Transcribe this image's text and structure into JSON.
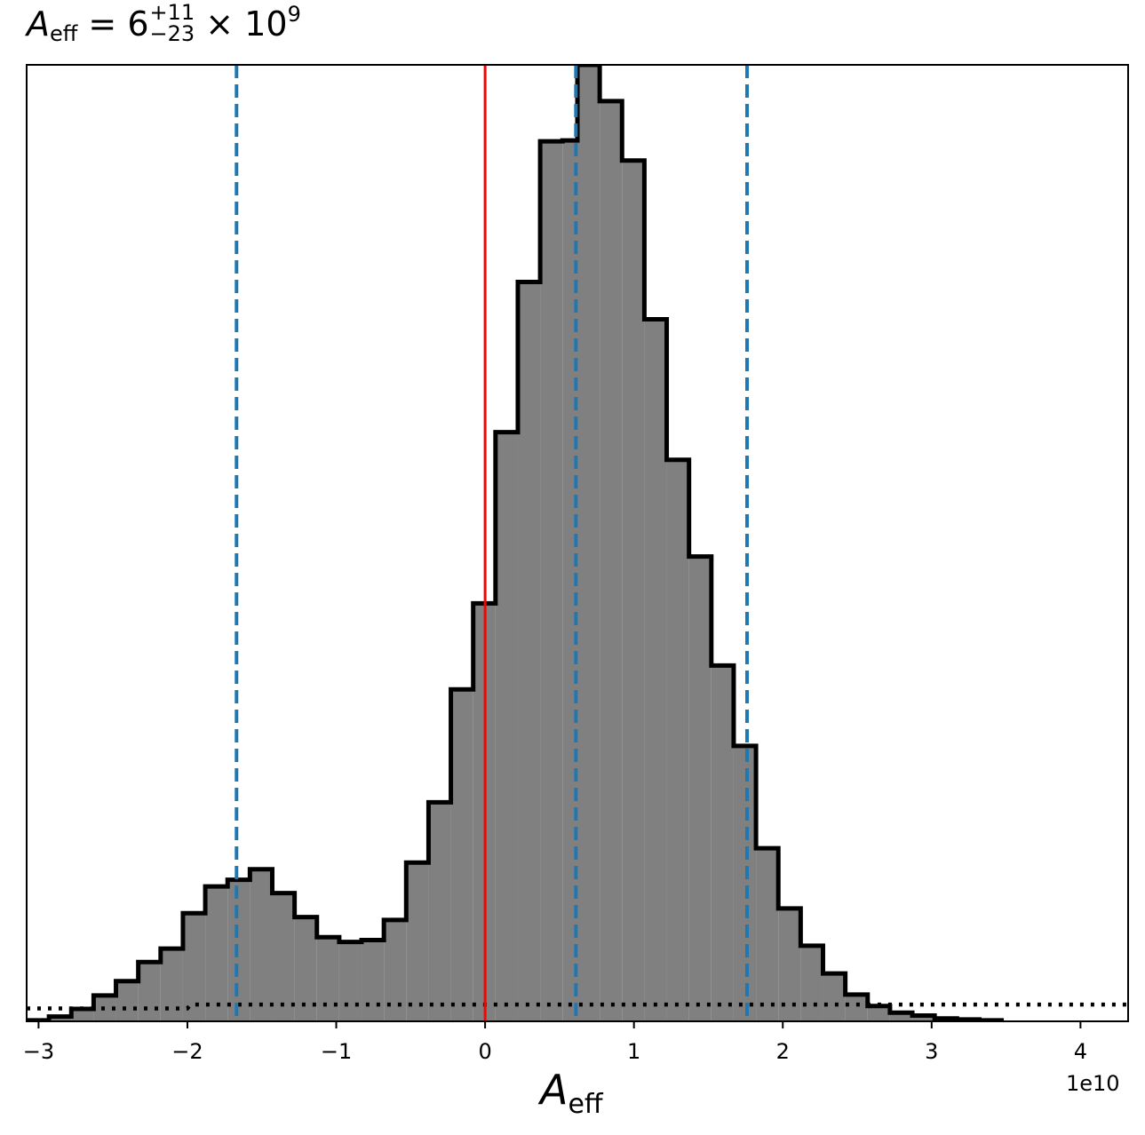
{
  "chart_data": {
    "type": "histogram",
    "title": {
      "symbol": "A",
      "subscript": "eff",
      "equals": "=",
      "median": "6",
      "upper": "+11",
      "lower": "−23",
      "times": "×",
      "base": "10",
      "exponent": "9"
    },
    "xlabel": {
      "symbol": "A",
      "subscript": "eff"
    },
    "x_offset_label": "1e10",
    "xlim": [
      -3.08,
      4.32
    ],
    "x_unit_scale": 10000000000.0,
    "xticks": [
      -3,
      -2,
      -1,
      0,
      1,
      2,
      3,
      4
    ],
    "xtick_labels": [
      "−3",
      "−2",
      "−1",
      "0",
      "1",
      "2",
      "3",
      "4"
    ],
    "yticks_shown": false,
    "bin_edges": [
      -3.08,
      -2.93,
      -2.78,
      -2.63,
      -2.48,
      -2.33,
      -2.18,
      -2.03,
      -1.88,
      -1.73,
      -1.58,
      -1.43,
      -1.28,
      -1.13,
      -0.98,
      -0.83,
      -0.68,
      -0.53,
      -0.38,
      -0.23,
      -0.08,
      0.07,
      0.22,
      0.37,
      0.52,
      0.62,
      0.77,
      0.92,
      1.07,
      1.22,
      1.37,
      1.52,
      1.67,
      1.82,
      1.97,
      2.12,
      2.27,
      2.42,
      2.57,
      2.72,
      2.87,
      3.02,
      3.17,
      3.32,
      3.47
    ],
    "counts": [
      0.1,
      0.5,
      1.3,
      2.7,
      4.2,
      6.2,
      7.6,
      11.3,
      14.1,
      14.8,
      15.9,
      13.4,
      10.9,
      8.8,
      8.3,
      8.5,
      10.6,
      16.6,
      22.9,
      34.7,
      43.7,
      61.6,
      77.3,
      92.0,
      92.1,
      100.0,
      96.2,
      90.0,
      73.4,
      58.7,
      48.6,
      37.2,
      28.8,
      18.1,
      11.8,
      7.9,
      5.0,
      2.8,
      1.6,
      0.9,
      0.6,
      0.3,
      0.2,
      0.1
    ],
    "ylim": [
      0,
      100
    ],
    "fill_color": "#808080",
    "edge_color": "#000000",
    "vertical_lines": [
      {
        "x": 0.0,
        "color": "#ff0000",
        "style": "solid"
      },
      {
        "x": -1.67,
        "color": "#1f77b4",
        "style": "dashed"
      },
      {
        "x": 0.61,
        "color": "#1f77b4",
        "style": "dashed"
      },
      {
        "x": 1.76,
        "color": "#1f77b4",
        "style": "dashed"
      }
    ],
    "prior_line": {
      "color": "#000000",
      "style": "dotted",
      "x": [
        -3.08,
        -2.0,
        -1.98,
        4.32
      ],
      "y": [
        1.35,
        1.35,
        1.75,
        1.75
      ]
    }
  }
}
